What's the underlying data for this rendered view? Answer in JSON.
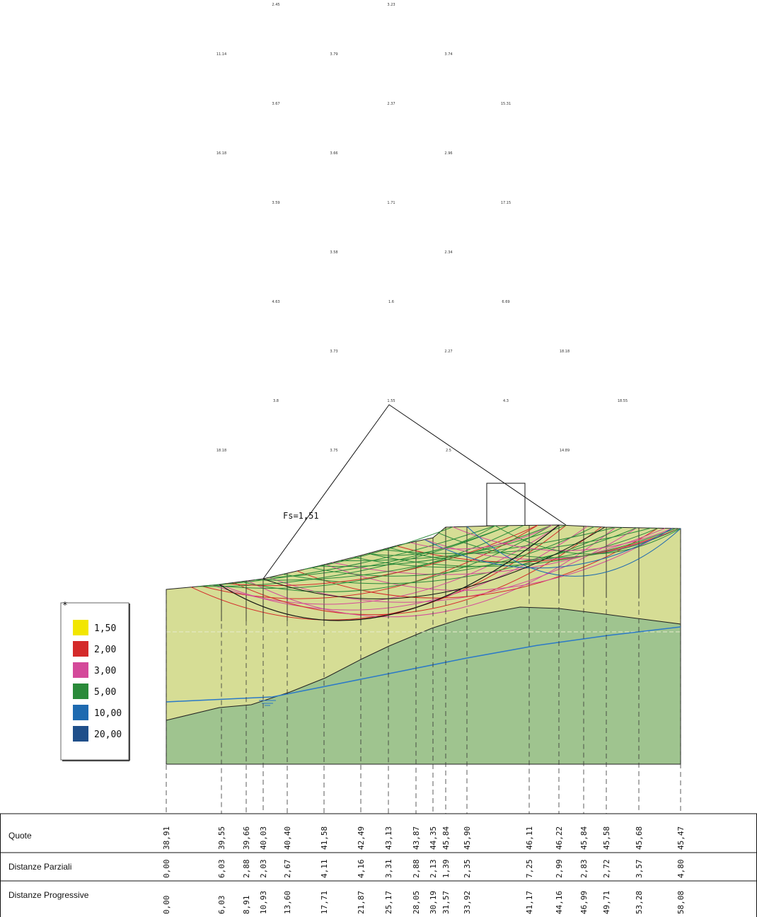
{
  "grid_labels": [
    {
      "text": "2.45",
      "col": 1,
      "row": 0
    },
    {
      "text": "3.23",
      "col": 3,
      "row": 0
    },
    {
      "text": "11.14",
      "col": 0,
      "row": 1
    },
    {
      "text": "3.79",
      "col": 2,
      "row": 1
    },
    {
      "text": "3.74",
      "col": 4,
      "row": 1
    },
    {
      "text": "3.67",
      "col": 1,
      "row": 2
    },
    {
      "text": "2.37",
      "col": 3,
      "row": 2
    },
    {
      "text": "15.31",
      "col": 5,
      "row": 2
    },
    {
      "text": "16.18",
      "col": 0,
      "row": 3
    },
    {
      "text": "3.66",
      "col": 2,
      "row": 3
    },
    {
      "text": "2.96",
      "col": 4,
      "row": 3
    },
    {
      "text": "3.59",
      "col": 1,
      "row": 4
    },
    {
      "text": "1.71",
      "col": 3,
      "row": 4
    },
    {
      "text": "17.15",
      "col": 5,
      "row": 4
    },
    {
      "text": "3.58",
      "col": 2,
      "row": 5
    },
    {
      "text": "2.34",
      "col": 4,
      "row": 5
    },
    {
      "text": "4.63",
      "col": 1,
      "row": 6
    },
    {
      "text": "1.6",
      "col": 3,
      "row": 6
    },
    {
      "text": "6.69",
      "col": 5,
      "row": 6
    },
    {
      "text": "3.73",
      "col": 2,
      "row": 7
    },
    {
      "text": "2.27",
      "col": 4,
      "row": 7
    },
    {
      "text": "18.18",
      "col": 6,
      "row": 7
    },
    {
      "text": "3.8",
      "col": 1,
      "row": 8
    },
    {
      "text": "1.55",
      "col": 3,
      "row": 8
    },
    {
      "text": "4.3",
      "col": 5,
      "row": 8
    },
    {
      "text": "18.55",
      "col": 7,
      "row": 8
    },
    {
      "text": "18.18",
      "col": 0,
      "row": 9
    },
    {
      "text": "3.75",
      "col": 2,
      "row": 9
    },
    {
      "text": "2.5",
      "col": 4,
      "row": 9
    },
    {
      "text": "14.89",
      "col": 6,
      "row": 9
    }
  ],
  "fs_label": "Fs=1,51",
  "legend": {
    "title": "*",
    "items": [
      {
        "label": "1,50",
        "color": "#f2e600"
      },
      {
        "label": "2,00",
        "color": "#d42a2a"
      },
      {
        "label": "3,00",
        "color": "#d44a9a"
      },
      {
        "label": "5,00",
        "color": "#2a8a3a"
      },
      {
        "label": "10,00",
        "color": "#1e6ab0"
      },
      {
        "label": "20,00",
        "color": "#1f4f8a"
      }
    ]
  },
  "section_table": {
    "rows": [
      {
        "label": "Quote",
        "values": [
          "38,91",
          "39,55",
          "39,66",
          "40,03",
          "40,40",
          "41,58",
          "42,49",
          "43,13",
          "43,87",
          "44,35",
          "45,84",
          "45,90",
          "46,11",
          "46,22",
          "45,84",
          "45,58",
          "45,68",
          "45,47"
        ]
      },
      {
        "label": "Distanze Parziali",
        "values": [
          "0,00",
          "6,03",
          "2,88",
          "2,03",
          "2,67",
          "4,11",
          "4,16",
          "3,31",
          "2,88",
          "2,13",
          "1,39",
          "2,35",
          "7,25",
          "2,99",
          "2,83",
          "2,72",
          "3,57",
          "4,80"
        ]
      },
      {
        "label": "Distanze Progressive",
        "values": [
          "0,00",
          "6,03",
          "8,91",
          "10,93",
          "13,60",
          "17,71",
          "21,87",
          "25,17",
          "28,05",
          "30,19",
          "31,57",
          "33,92",
          "41,17",
          "44,16",
          "46,99",
          "49,71",
          "53,28",
          "58,08"
        ]
      }
    ]
  }
}
